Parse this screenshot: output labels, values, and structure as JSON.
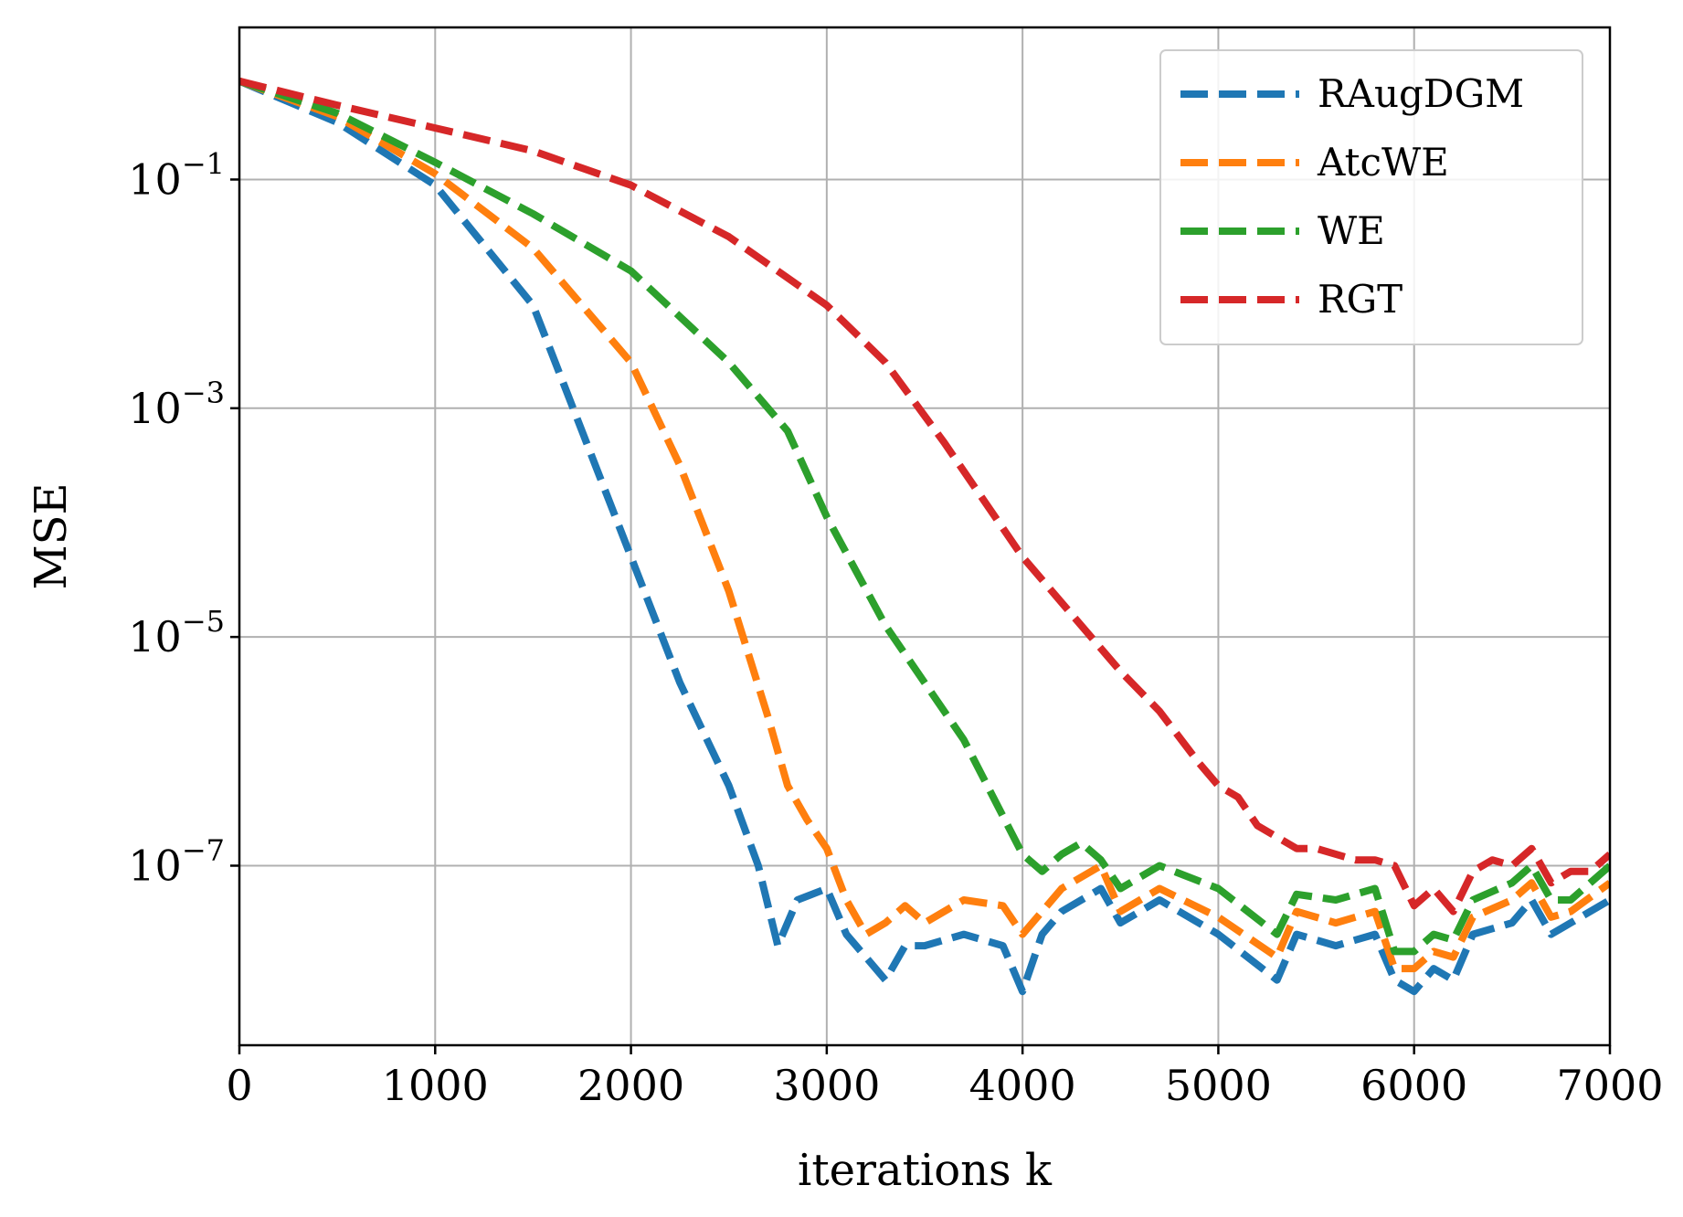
{
  "chart_data": {
    "type": "line",
    "title": "",
    "xlabel": "iterations k",
    "ylabel": "MSE",
    "xlim": [
      0,
      7000
    ],
    "ylim_log10": [
      -8.57,
      0.33
    ],
    "yscale": "log",
    "grid": true,
    "legend_position": "top-right",
    "x_ticks": [
      0,
      1000,
      2000,
      3000,
      4000,
      5000,
      6000,
      7000
    ],
    "x_tick_labels": [
      "0",
      "1000",
      "2000",
      "3000",
      "4000",
      "5000",
      "6000",
      "7000"
    ],
    "y_ticks_log10": [
      -1,
      -3,
      -5,
      -7
    ],
    "y_tick_labels": [
      {
        "base": "10",
        "exp": "−1"
      },
      {
        "base": "10",
        "exp": "−3"
      },
      {
        "base": "10",
        "exp": "−5"
      },
      {
        "base": "10",
        "exp": "−7"
      }
    ],
    "series": [
      {
        "name": "RAugDGM",
        "color": "#1f77b4",
        "x": [
          0,
          500,
          1000,
          1500,
          2000,
          2250,
          2500,
          2650,
          2750,
          2850,
          3000,
          3100,
          3200,
          3300,
          3400,
          3500,
          3700,
          3900,
          4000,
          4100,
          4200,
          4400,
          4500,
          4700,
          5000,
          5300,
          5400,
          5600,
          5800,
          5900,
          6000,
          6100,
          6200,
          6300,
          6500,
          6600,
          6700,
          6800,
          7000
        ],
        "y_log10": [
          -0.14,
          -0.5,
          -1.05,
          -2.1,
          -4.3,
          -5.4,
          -6.3,
          -7.0,
          -7.7,
          -7.3,
          -7.2,
          -7.6,
          -7.8,
          -8.0,
          -7.7,
          -7.7,
          -7.6,
          -7.7,
          -8.1,
          -7.6,
          -7.4,
          -7.2,
          -7.5,
          -7.3,
          -7.6,
          -8.0,
          -7.6,
          -7.7,
          -7.6,
          -8.0,
          -8.1,
          -7.9,
          -8.0,
          -7.6,
          -7.5,
          -7.3,
          -7.6,
          -7.5,
          -7.3
        ]
      },
      {
        "name": "AtcWE",
        "color": "#ff7f0e",
        "x": [
          0,
          500,
          1000,
          1500,
          2000,
          2250,
          2500,
          2700,
          2800,
          2900,
          3000,
          3100,
          3200,
          3300,
          3400,
          3500,
          3700,
          3900,
          4000,
          4100,
          4200,
          4400,
          4500,
          4700,
          5000,
          5300,
          5400,
          5600,
          5800,
          5900,
          6000,
          6100,
          6200,
          6300,
          6500,
          6600,
          6700,
          6800,
          7000
        ],
        "y_log10": [
          -0.14,
          -0.45,
          -0.95,
          -1.6,
          -2.6,
          -3.5,
          -4.6,
          -5.7,
          -6.3,
          -6.6,
          -6.85,
          -7.3,
          -7.6,
          -7.5,
          -7.35,
          -7.5,
          -7.3,
          -7.35,
          -7.6,
          -7.4,
          -7.2,
          -7.0,
          -7.4,
          -7.2,
          -7.45,
          -7.8,
          -7.4,
          -7.5,
          -7.4,
          -7.9,
          -7.9,
          -7.75,
          -7.8,
          -7.45,
          -7.3,
          -7.15,
          -7.45,
          -7.4,
          -7.15
        ]
      },
      {
        "name": "WE",
        "color": "#2ca02c",
        "x": [
          0,
          500,
          1000,
          1500,
          2000,
          2500,
          2800,
          3000,
          3300,
          3500,
          3700,
          3850,
          4000,
          4100,
          4200,
          4300,
          4400,
          4500,
          4700,
          5000,
          5300,
          5400,
          5600,
          5800,
          5900,
          6000,
          6100,
          6200,
          6300,
          6500,
          6600,
          6700,
          6800,
          7000
        ],
        "y_log10": [
          -0.14,
          -0.42,
          -0.85,
          -1.3,
          -1.8,
          -2.6,
          -3.2,
          -3.95,
          -4.9,
          -5.4,
          -5.9,
          -6.4,
          -6.9,
          -7.05,
          -6.9,
          -6.8,
          -6.95,
          -7.2,
          -7.0,
          -7.2,
          -7.6,
          -7.25,
          -7.3,
          -7.2,
          -7.75,
          -7.75,
          -7.6,
          -7.65,
          -7.3,
          -7.15,
          -7.0,
          -7.3,
          -7.3,
          -7.0
        ]
      },
      {
        "name": "RGT",
        "color": "#d62728",
        "x": [
          0,
          500,
          1000,
          1500,
          2000,
          2500,
          3000,
          3300,
          3600,
          4000,
          4300,
          4500,
          4700,
          4900,
          5000,
          5100,
          5200,
          5300,
          5400,
          5500,
          5700,
          5800,
          5900,
          6000,
          6100,
          6200,
          6300,
          6400,
          6500,
          6600,
          6700,
          6800,
          6900,
          7000
        ],
        "y_log10": [
          -0.14,
          -0.35,
          -0.55,
          -0.75,
          -1.05,
          -1.5,
          -2.1,
          -2.6,
          -3.3,
          -4.3,
          -4.9,
          -5.3,
          -5.65,
          -6.1,
          -6.3,
          -6.4,
          -6.65,
          -6.75,
          -6.85,
          -6.85,
          -6.95,
          -6.95,
          -7.0,
          -7.35,
          -7.2,
          -7.4,
          -7.05,
          -6.95,
          -7.0,
          -6.85,
          -7.15,
          -7.05,
          -7.05,
          -6.9
        ]
      }
    ]
  }
}
